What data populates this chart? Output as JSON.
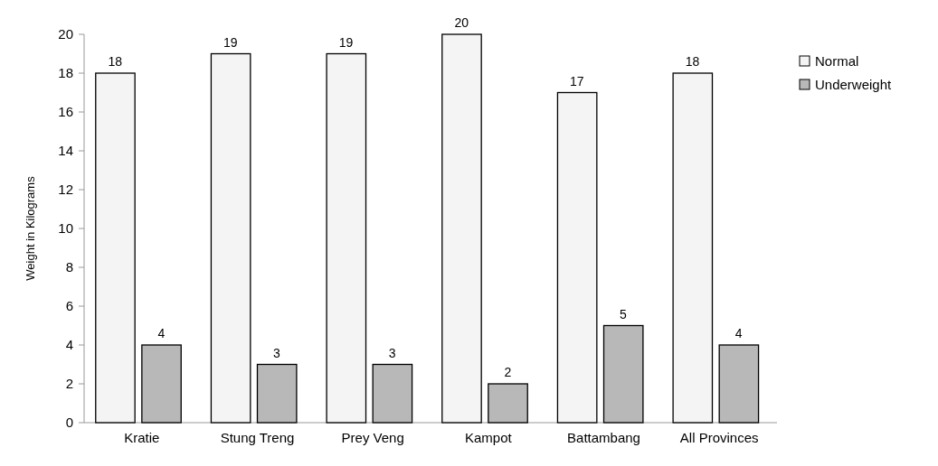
{
  "chart_data": {
    "type": "bar",
    "ylabel": "Weight in Kilograms",
    "categories": [
      "Kratie",
      "Stung Treng",
      "Prey Veng",
      "Kampot",
      "Battambang",
      "All Provinces"
    ],
    "series": [
      {
        "name": "Normal",
        "color": "#f4f4f4",
        "values": [
          18,
          19,
          19,
          20,
          17,
          18
        ]
      },
      {
        "name": "Underweight",
        "color": "#b8b8b8",
        "values": [
          4,
          3,
          3,
          2,
          5,
          4
        ]
      }
    ],
    "ylim": [
      0,
      20
    ],
    "yticks": [
      0,
      2,
      4,
      6,
      8,
      10,
      12,
      14,
      16,
      18,
      20
    ],
    "data_labels": true,
    "legend": "top right"
  }
}
